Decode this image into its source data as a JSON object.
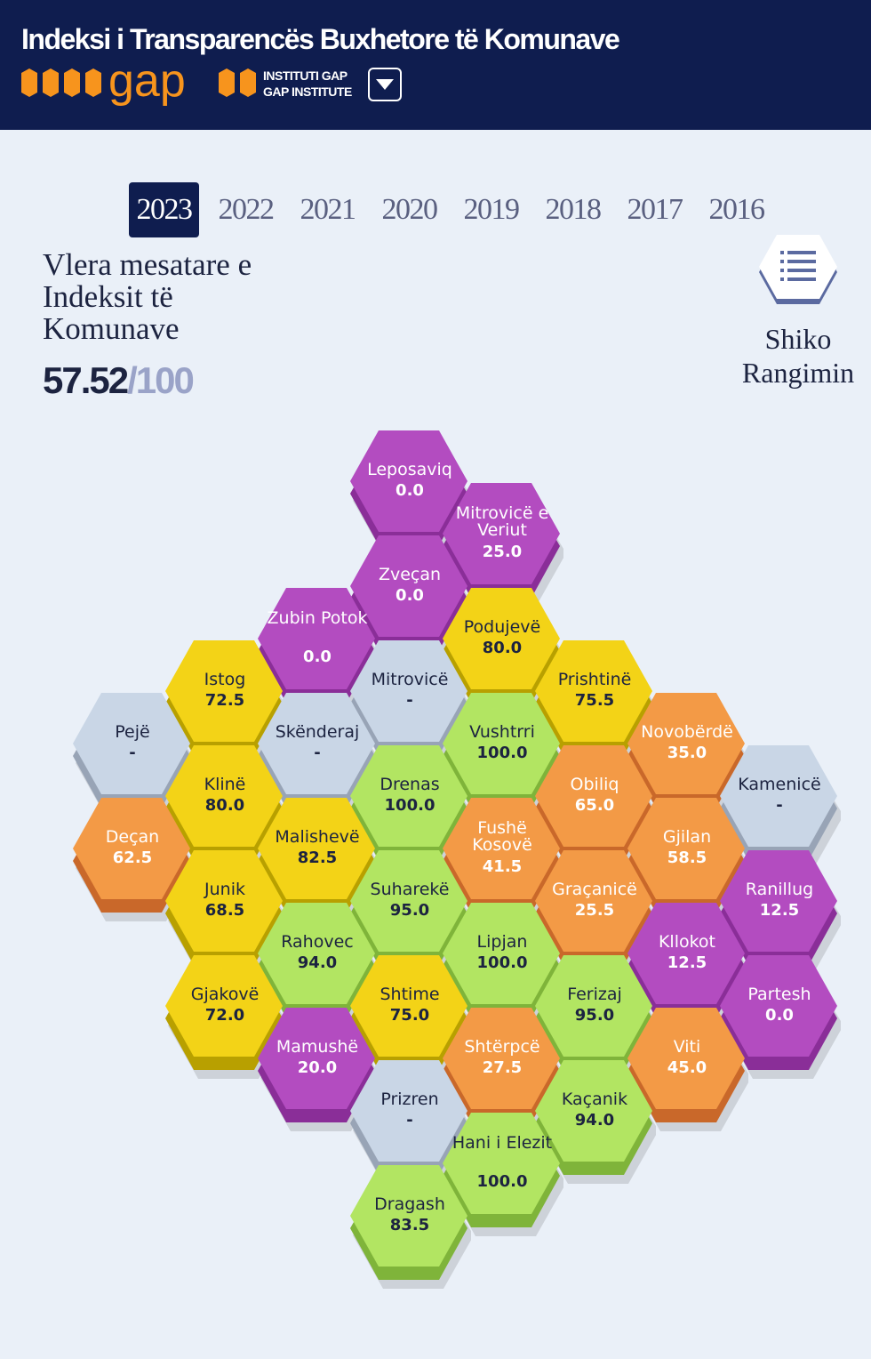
{
  "header": {
    "title": "Indeksi i Transparencës Buxhetore të Komunave",
    "org_line1": "INSTITUTI GAP",
    "org_line2": "GAP INSTITUTE",
    "logo_word": "gap"
  },
  "years": [
    "2023",
    "2022",
    "2021",
    "2020",
    "2019",
    "2018",
    "2017",
    "2016"
  ],
  "active_year": "2023",
  "average": {
    "label": "Vlera mesatare e Indeksit të Komunave",
    "value": "57.52",
    "max": "/100"
  },
  "ranking_button": {
    "label": "Shiko Rangimin",
    "icon": "list-icon"
  },
  "colors": {
    "purple": "#b34cc0",
    "yellow": "#f3d317",
    "green": "#b2e562",
    "orange": "#f39a46",
    "grey": "#c9d6e6",
    "header": "#0f1d4f",
    "logo_orange": "#f7941d"
  },
  "municipalities": [
    {
      "name": "Leposaviq",
      "value": "0.0",
      "color": "purple",
      "col": 3,
      "row": 0
    },
    {
      "name": "Mitrovicë e Veriut",
      "value": "25.0",
      "color": "purple",
      "col": 4,
      "row": 1
    },
    {
      "name": "Zveçan",
      "value": "0.0",
      "color": "purple",
      "col": 3,
      "row": 2
    },
    {
      "name": "Podujevë",
      "value": "80.0",
      "color": "yellow",
      "col": 4,
      "row": 3
    },
    {
      "name": "Zubin Potok",
      "value": "0.0",
      "color": "purple",
      "col": 2,
      "row": 3
    },
    {
      "name": "Istog",
      "value": "72.5",
      "color": "yellow",
      "col": 1,
      "row": 4
    },
    {
      "name": "Mitrovicë",
      "value": "-",
      "color": "grey",
      "col": 3,
      "row": 4
    },
    {
      "name": "Prishtinë",
      "value": "75.5",
      "color": "yellow",
      "col": 5,
      "row": 4
    },
    {
      "name": "Pejë",
      "value": "-",
      "color": "grey",
      "col": 0,
      "row": 5
    },
    {
      "name": "Skënderaj",
      "value": "-",
      "color": "grey",
      "col": 2,
      "row": 5
    },
    {
      "name": "Vushtrri",
      "value": "100.0",
      "color": "green",
      "col": 4,
      "row": 5
    },
    {
      "name": "Novobërdë",
      "value": "35.0",
      "color": "orange",
      "col": 6,
      "row": 5
    },
    {
      "name": "Klinë",
      "value": "80.0",
      "color": "yellow",
      "col": 1,
      "row": 6
    },
    {
      "name": "Drenas",
      "value": "100.0",
      "color": "green",
      "col": 3,
      "row": 6
    },
    {
      "name": "Obiliq",
      "value": "65.0",
      "color": "orange",
      "col": 5,
      "row": 6
    },
    {
      "name": "Kamenicë",
      "value": "-",
      "color": "grey",
      "col": 7,
      "row": 6
    },
    {
      "name": "Deçan",
      "value": "62.5",
      "color": "orange",
      "col": 0,
      "row": 7
    },
    {
      "name": "Malishevë",
      "value": "82.5",
      "color": "yellow",
      "col": 2,
      "row": 7
    },
    {
      "name": "Fushë Kosovë",
      "value": "41.5",
      "color": "orange",
      "col": 4,
      "row": 7
    },
    {
      "name": "Gjilan",
      "value": "58.5",
      "color": "orange",
      "col": 6,
      "row": 7
    },
    {
      "name": "Junik",
      "value": "68.5",
      "color": "yellow",
      "col": 1,
      "row": 8
    },
    {
      "name": "Suharekë",
      "value": "95.0",
      "color": "green",
      "col": 3,
      "row": 8
    },
    {
      "name": "Graçanicë",
      "value": "25.5",
      "color": "orange",
      "col": 5,
      "row": 8
    },
    {
      "name": "Ranillug",
      "value": "12.5",
      "color": "purple",
      "col": 7,
      "row": 8
    },
    {
      "name": "Rahovec",
      "value": "94.0",
      "color": "green",
      "col": 2,
      "row": 9
    },
    {
      "name": "Lipjan",
      "value": "100.0",
      "color": "green",
      "col": 4,
      "row": 9
    },
    {
      "name": "Kllokot",
      "value": "12.5",
      "color": "purple",
      "col": 6,
      "row": 9
    },
    {
      "name": "Gjakovë",
      "value": "72.0",
      "color": "yellow",
      "col": 1,
      "row": 10
    },
    {
      "name": "Shtime",
      "value": "75.0",
      "color": "yellow",
      "col": 3,
      "row": 10
    },
    {
      "name": "Ferizaj",
      "value": "95.0",
      "color": "green",
      "col": 5,
      "row": 10
    },
    {
      "name": "Partesh",
      "value": "0.0",
      "color": "purple",
      "col": 7,
      "row": 10
    },
    {
      "name": "Mamushë",
      "value": "20.0",
      "color": "purple",
      "col": 2,
      "row": 11
    },
    {
      "name": "Shtërpcë",
      "value": "27.5",
      "color": "orange",
      "col": 4,
      "row": 11
    },
    {
      "name": "Viti",
      "value": "45.0",
      "color": "orange",
      "col": 6,
      "row": 11
    },
    {
      "name": "Prizren",
      "value": "-",
      "color": "grey",
      "col": 3,
      "row": 12
    },
    {
      "name": "Kaçanik",
      "value": "94.0",
      "color": "green",
      "col": 5,
      "row": 12
    },
    {
      "name": "Hani i Elezit",
      "value": "100.0",
      "color": "green",
      "col": 4,
      "row": 13
    },
    {
      "name": "Dragash",
      "value": "83.5",
      "color": "green",
      "col": 3,
      "row": 14
    }
  ]
}
